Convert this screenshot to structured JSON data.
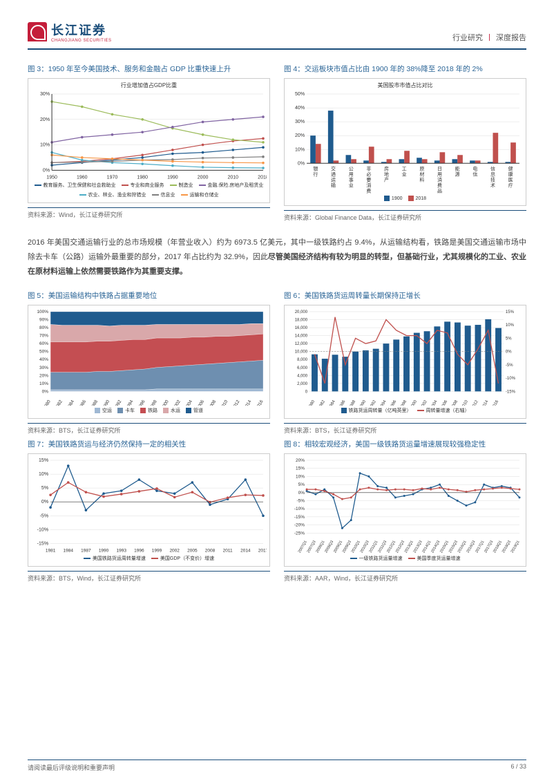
{
  "header": {
    "logo_cn": "长江证券",
    "logo_en": "CHANGJIANG SECURITIES",
    "right_a": "行业研究",
    "right_b": "深度报告"
  },
  "paragraph": {
    "t1": "2016 年美国交通运输行业的总市场规模（年营业收入）约为 6973.5 亿美元，其中一级铁路约占 9.4%，从运输结构看，铁路是美国交通运输市场中除去卡车（公路）运输外最重要的部分，2017 年占比约为 32.9%，因此",
    "bold1": "尽管美国经济结构有较为明显的转型，但基础行业，尤其规模化的工业、农业在原材料运输上依然需要铁路作为其重要支撑。"
  },
  "footer": {
    "left": "请阅读最后评级说明和重要声明",
    "right": "6 / 33"
  },
  "fig3": {
    "title": "图 3：1950 年至今美国技术、服务和金融占 GDP 比重快速上升",
    "chart_title": "行业增加值占GDP比重",
    "source": "资料来源：Wind，长江证券研究所",
    "x": [
      1950,
      1960,
      1970,
      1980,
      1990,
      2000,
      2010,
      2018
    ],
    "ylim": [
      0,
      30
    ],
    "ytick_step": 10,
    "series": [
      {
        "name": "教育服务、卫生保健和社会救助业",
        "color": "#1f5b8e",
        "marker": "diamond",
        "y": [
          2,
          3,
          4,
          5,
          6.5,
          7,
          8,
          9
        ]
      },
      {
        "name": "专业和商业服务",
        "color": "#c0504d",
        "marker": "square",
        "y": [
          3,
          3.5,
          4.5,
          6,
          8,
          10,
          11.5,
          12.5
        ]
      },
      {
        "name": "制造业",
        "color": "#9bbb59",
        "marker": "triangle",
        "y": [
          27,
          25,
          22,
          20,
          16.5,
          14,
          12,
          11
        ]
      },
      {
        "name": "金融.保险.房地产及租赁业",
        "color": "#8064a2",
        "marker": "circle",
        "y": [
          11,
          13,
          14,
          15,
          17,
          19,
          20,
          21
        ]
      },
      {
        "name": "农业、林业、渔业和狩猎业",
        "color": "#4bacc6",
        "marker": "x",
        "y": [
          7,
          4,
          3,
          2.5,
          1.8,
          1.2,
          1,
          0.9
        ]
      },
      {
        "name": "信息业",
        "color": "#7f7f7f",
        "marker": "circle",
        "y": [
          3,
          3.2,
          3.5,
          4,
          4.2,
          4.8,
          5,
          5.3
        ]
      },
      {
        "name": "运输和仓储业",
        "color": "#f79646",
        "marker": "plus",
        "y": [
          6,
          5,
          4.5,
          4,
          3.5,
          3.2,
          3,
          2.9
        ]
      }
    ]
  },
  "fig4": {
    "title": "图 4：交运板块市值占比由 1900 年的 38%降至 2018 年的 2%",
    "chart_title": "美国股市市值占比对比",
    "source": "资料来源：Global Finance Data，长江证券研究所",
    "ylim": [
      0,
      50
    ],
    "ytick_step": 10,
    "cats": [
      "银行",
      "交通运输",
      "公用事业",
      "非必要消费",
      "房地产",
      "工业",
      "原材料",
      "日用消费品",
      "能源",
      "电信",
      "信息技术",
      "健康医疗"
    ],
    "c1900": "#1f5b8e",
    "c2018": "#c0504d",
    "y1900": [
      20,
      38,
      6,
      2,
      1,
      3,
      4,
      2,
      3,
      2,
      1,
      1
    ],
    "y2018": [
      14,
      2,
      3,
      12,
      3,
      9,
      3,
      8,
      6,
      2,
      22,
      15
    ],
    "legend": [
      "1900",
      "2018"
    ]
  },
  "fig5": {
    "title": "图 5：美国运输结构中铁路占据重要地位",
    "source": "资料来源：BTS，长江证券研究所",
    "x": [
      1980,
      1982,
      1984,
      1986,
      1988,
      1990,
      1992,
      1994,
      1996,
      1998,
      2000,
      2002,
      2004,
      2006,
      2008,
      2010,
      2012,
      2014,
      2016
    ],
    "ylim": [
      0,
      100
    ],
    "ytick_step": 10,
    "layers": [
      {
        "name": "空运",
        "color": "#9fb8d3",
        "share": [
          2,
          2,
          2,
          2,
          2,
          2,
          2,
          2,
          2,
          3,
          3,
          3,
          3,
          3,
          3,
          3,
          3,
          3,
          3
        ]
      },
      {
        "name": "卡车",
        "color": "#6e8fb0",
        "share": [
          22,
          22,
          22,
          22,
          23,
          23,
          24,
          25,
          26,
          27,
          28,
          29,
          30,
          31,
          32,
          33,
          34,
          35,
          36
        ]
      },
      {
        "name": "铁路",
        "color": "#c44e52",
        "share": [
          38,
          38,
          38,
          38,
          38,
          38,
          38,
          38,
          37,
          37,
          36,
          35,
          35,
          34,
          34,
          33,
          33,
          33,
          33
        ]
      },
      {
        "name": "水运",
        "color": "#d9a8aa",
        "share": [
          22,
          21,
          21,
          21,
          20,
          19,
          19,
          18,
          18,
          17,
          17,
          17,
          16,
          16,
          15,
          15,
          14,
          14,
          13
        ]
      },
      {
        "name": "管道",
        "color": "#1f5b8e",
        "share": [
          16,
          17,
          17,
          17,
          17,
          18,
          17,
          17,
          17,
          16,
          16,
          16,
          16,
          16,
          16,
          16,
          16,
          15,
          15
        ]
      }
    ]
  },
  "fig6": {
    "title": "图 6：美国铁路货运周转量长期保持正增长",
    "source": "资料来源：BTS，长江证券研究所",
    "x": [
      1980,
      1982,
      1984,
      1986,
      1988,
      1990,
      1992,
      1994,
      1996,
      1998,
      2000,
      2002,
      2004,
      2006,
      2008,
      2010,
      2012,
      2014,
      2016
    ],
    "ylim_l": [
      0,
      20000
    ],
    "ytick_l": 2000,
    "ylim_r": [
      -15,
      15
    ],
    "ytick_r": 5,
    "bars": {
      "name": "铁路货运周转量（亿吨英里）",
      "color": "#1f5b8e",
      "y": [
        9300,
        8200,
        9200,
        8700,
        10000,
        10300,
        10700,
        12000,
        13000,
        13800,
        14700,
        15100,
        16300,
        17500,
        17300,
        16500,
        16700,
        18100,
        15900
      ]
    },
    "line": {
      "name": "周转量增速（右轴）",
      "color": "#c0504d",
      "y": [
        -1,
        -12,
        13,
        -5,
        5,
        3,
        4,
        12,
        8,
        6,
        6,
        3,
        8,
        7,
        -1,
        -5,
        1,
        8,
        -12
      ]
    }
  },
  "fig7": {
    "title": "图 7：美国铁路货运与经济仍然保持一定的相关性",
    "source": "资料来源：BTS，Wind，长江证券研究所",
    "x": [
      1981,
      1984,
      1987,
      1990,
      1993,
      1996,
      1999,
      2002,
      2005,
      2008,
      2011,
      2014,
      2017
    ],
    "ylim": [
      -15,
      15
    ],
    "ytick_step": 5,
    "s1": {
      "name": "美国铁路货运周转量增速",
      "color": "#1f5b8e",
      "y": [
        -2,
        13,
        -3,
        3,
        4,
        8,
        4,
        3,
        7,
        -1,
        1,
        8,
        -5
      ]
    },
    "s2": {
      "name": "美国GDP（不变价）增速",
      "color": "#c0504d",
      "y": [
        2.5,
        7,
        3.5,
        1.9,
        2.8,
        3.8,
        4.8,
        1.7,
        3.5,
        -0.1,
        1.5,
        2.5,
        2.3
      ]
    }
  },
  "fig8": {
    "title": "图 8：相较宏观经济，美国一级铁路货运量增速展现较强稳定性",
    "source": "资料来源：AAR，Wind，长江证券研究所",
    "x": [
      "2007Q1",
      "2007Q3",
      "2008Q1",
      "2008Q3",
      "2009Q1",
      "2009Q3",
      "2010Q1",
      "2010Q3",
      "2011Q1",
      "2011Q3",
      "2012Q1",
      "2012Q3",
      "2013Q1",
      "2013Q3",
      "2014Q1",
      "2014Q3",
      "2015Q1",
      "2015Q3",
      "2016Q1",
      "2016Q3",
      "2017Q1",
      "2017Q3",
      "2018Q1",
      "2018Q3",
      "2019Q1"
    ],
    "ylim": [
      -25,
      20
    ],
    "ytick_step": 5,
    "s1": {
      "name": "一级铁路货运量增速",
      "color": "#1f5b8e",
      "y": [
        1,
        -1,
        2,
        -3,
        -22,
        -17,
        12,
        10,
        4,
        3,
        -3,
        -2,
        -1,
        2,
        3,
        5,
        -2,
        -5,
        -8,
        -6,
        5,
        3,
        4,
        3,
        -3
      ]
    },
    "s2": {
      "name": "美国季度货运量增速",
      "color": "#c0504d",
      "y": [
        2,
        2,
        1,
        -1,
        -4,
        -3,
        2,
        3,
        2,
        1.5,
        2,
        2,
        1.5,
        2.5,
        2,
        3,
        2,
        1.5,
        0.5,
        1.5,
        2,
        2.5,
        3,
        2.5,
        2
      ]
    }
  }
}
